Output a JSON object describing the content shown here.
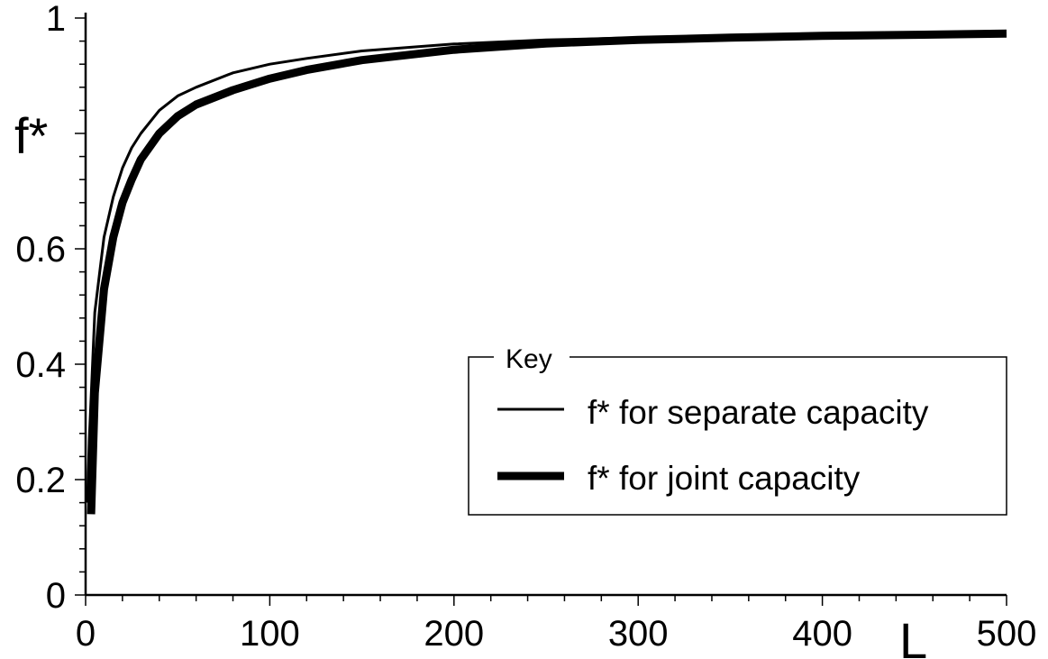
{
  "chart_data": {
    "type": "line",
    "xlabel": "L",
    "ylabel": "f*",
    "xlim": [
      0,
      500
    ],
    "ylim": [
      0,
      1
    ],
    "x_ticks": [
      0,
      100,
      200,
      300,
      400,
      500
    ],
    "x_tick_labels": [
      "0",
      "100",
      "200",
      "300",
      "400",
      "500"
    ],
    "y_ticks": [
      0,
      0.2,
      0.4,
      0.6,
      1
    ],
    "y_tick_labels": [
      "0",
      "0.2",
      "0.4",
      "0.6",
      "1"
    ],
    "grid": false,
    "legend": {
      "title": "Key",
      "placement": "bottom-right",
      "entries": [
        "f* for separate capacity",
        "f* for joint capacity"
      ]
    },
    "series": [
      {
        "name": "f* for separate capacity",
        "color": "#000000",
        "line": "thin",
        "x": [
          1,
          2,
          5,
          10,
          15,
          20,
          25,
          30,
          40,
          50,
          60,
          80,
          100,
          120,
          150,
          200,
          250,
          300,
          350,
          400,
          450,
          500
        ],
        "y": [
          0.16,
          0.27,
          0.49,
          0.62,
          0.69,
          0.74,
          0.775,
          0.8,
          0.84,
          0.865,
          0.88,
          0.905,
          0.92,
          0.93,
          0.943,
          0.955,
          0.962,
          0.966,
          0.968,
          0.97,
          0.972,
          0.973
        ]
      },
      {
        "name": "f* for joint capacity",
        "color": "#000000",
        "line": "thick",
        "x": [
          3,
          5,
          10,
          15,
          20,
          25,
          30,
          40,
          50,
          60,
          80,
          100,
          120,
          150,
          200,
          250,
          300,
          350,
          400,
          450,
          500
        ],
        "y": [
          0.14,
          0.35,
          0.53,
          0.62,
          0.68,
          0.72,
          0.755,
          0.8,
          0.83,
          0.85,
          0.875,
          0.895,
          0.91,
          0.927,
          0.945,
          0.956,
          0.962,
          0.966,
          0.969,
          0.971,
          0.973
        ]
      }
    ]
  }
}
